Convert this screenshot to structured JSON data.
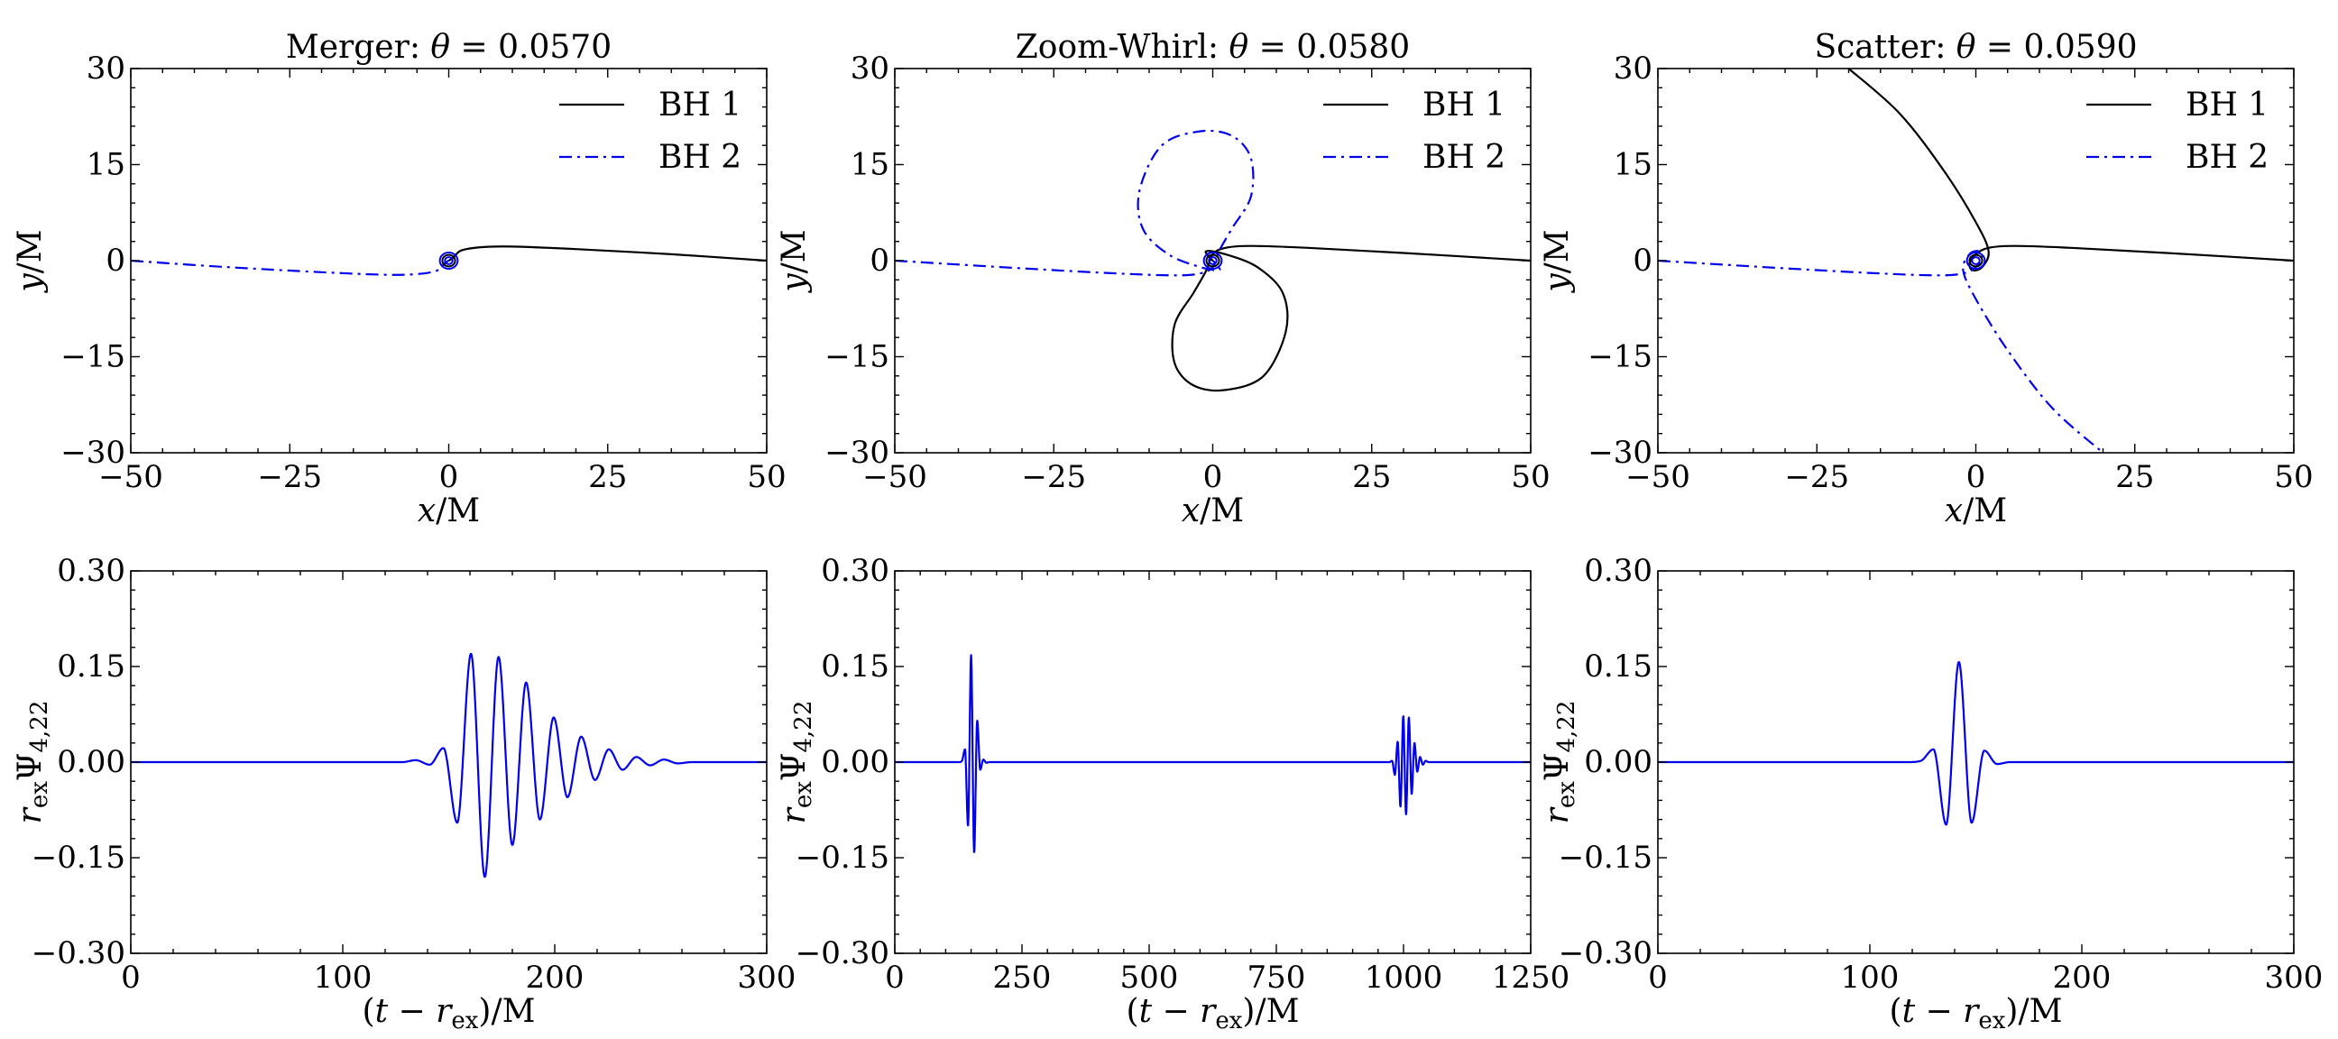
{
  "figure": {
    "colors": {
      "bh1": "#000000",
      "bh2": "#0000ee",
      "wave": "#0000ee",
      "axis": "#000000"
    }
  },
  "chart_data": [
    {
      "type": "line",
      "panel": "top-left",
      "title": "Merger: θ = 0.0570",
      "xlabel": "x/M",
      "ylabel": "y/M",
      "xlim": [
        -50,
        50
      ],
      "ylim": [
        -30,
        30
      ],
      "xticks": [
        -50,
        -25,
        0,
        25,
        50
      ],
      "yticks": [
        -30,
        -15,
        0,
        15,
        30
      ],
      "xtick_labels": [
        "−50",
        "−25",
        "0",
        "25",
        "50"
      ],
      "ytick_labels": [
        "−30",
        "−15",
        "0",
        "15",
        "30"
      ],
      "legend": {
        "position": "top-right",
        "entries": [
          "BH 1",
          "BH 2"
        ]
      },
      "series": [
        {
          "name": "BH 1",
          "style": "solid",
          "x": [
            50,
            35,
            20,
            10,
            5,
            2,
            1,
            0.5,
            0
          ],
          "y": [
            0,
            1.0,
            1.8,
            2.2,
            2.1,
            1.6,
            0.8,
            0.3,
            0
          ]
        },
        {
          "name": "BH 2",
          "style": "dashdot",
          "x": [
            -50,
            -35,
            -20,
            -10,
            -5,
            -2,
            -1,
            -0.5,
            0
          ],
          "y": [
            0,
            -1.0,
            -1.8,
            -2.2,
            -2.1,
            -1.6,
            -0.8,
            -0.3,
            0
          ]
        }
      ]
    },
    {
      "type": "line",
      "panel": "top-middle",
      "title": "Zoom-Whirl: θ = 0.0580",
      "xlabel": "x/M",
      "ylabel": "y/M",
      "xlim": [
        -50,
        50
      ],
      "ylim": [
        -30,
        30
      ],
      "xticks": [
        -50,
        -25,
        0,
        25,
        50
      ],
      "yticks": [
        -30,
        -15,
        0,
        15,
        30
      ],
      "xtick_labels": [
        "−50",
        "−25",
        "0",
        "25",
        "50"
      ],
      "ytick_labels": [
        "−30",
        "−15",
        "0",
        "15",
        "30"
      ],
      "legend": {
        "position": "top-right",
        "entries": [
          "BH 1",
          "BH 2"
        ]
      },
      "series": [
        {
          "name": "BH 1",
          "style": "solid",
          "x": [
            50,
            30,
            15,
            6,
            2,
            0,
            -1,
            -3,
            -6,
            -6,
            -3,
            2,
            8,
            11.5,
            11,
            7,
            2,
            -1,
            -0.5,
            0
          ],
          "y": [
            0,
            1.2,
            2.0,
            2.3,
            2.0,
            1.0,
            -1.5,
            -5,
            -10,
            -16,
            -19.5,
            -20.2,
            -18,
            -11,
            -5,
            -1,
            1,
            1.5,
            0.5,
            0
          ]
        },
        {
          "name": "BH 2",
          "style": "dashdot",
          "x": [
            -50,
            -30,
            -15,
            -6,
            -2,
            0,
            1,
            3,
            6,
            6,
            3,
            -2,
            -8,
            -11.5,
            -11,
            -7,
            -2,
            1,
            0.5,
            0
          ],
          "y": [
            0,
            -1.2,
            -2.0,
            -2.3,
            -2.0,
            -1.0,
            1.5,
            5,
            10,
            16,
            19.5,
            20.2,
            18,
            11,
            5,
            1,
            -1,
            -1.5,
            -0.5,
            0
          ]
        }
      ]
    },
    {
      "type": "line",
      "panel": "top-right",
      "title": "Scatter: θ = 0.0590",
      "xlabel": "x/M",
      "ylabel": "y/M",
      "xlim": [
        -50,
        50
      ],
      "ylim": [
        -30,
        30
      ],
      "xticks": [
        -50,
        -25,
        0,
        25,
        50
      ],
      "yticks": [
        -30,
        -15,
        0,
        15,
        30
      ],
      "xtick_labels": [
        "−50",
        "−25",
        "0",
        "25",
        "50"
      ],
      "ytick_labels": [
        "−30",
        "−15",
        "0",
        "15",
        "30"
      ],
      "legend": {
        "position": "top-right",
        "entries": [
          "BH 1",
          "BH 2"
        ]
      },
      "series": [
        {
          "name": "BH 1",
          "style": "solid",
          "x": [
            50,
            30,
            15,
            6,
            2,
            0,
            -1,
            -0.5,
            1,
            2,
            0,
            -5,
            -12,
            -20
          ],
          "y": [
            0,
            1.2,
            2.0,
            2.3,
            2.0,
            1.0,
            -0.5,
            -1.5,
            -1.0,
            1.5,
            6,
            14,
            23,
            30
          ]
        },
        {
          "name": "BH 2",
          "style": "dashdot",
          "x": [
            -50,
            -30,
            -15,
            -6,
            -2,
            0,
            1,
            0.5,
            -1,
            -2,
            0,
            5,
            12,
            20
          ],
          "y": [
            0,
            -1.2,
            -2.0,
            -2.3,
            -2.0,
            -1.0,
            0.5,
            1.5,
            1.0,
            -1.5,
            -6,
            -14,
            -23,
            -30
          ]
        }
      ]
    },
    {
      "type": "line",
      "panel": "bottom-left",
      "xlabel": "(t − r_ex)/M",
      "ylabel": "r_ex Ψ_4,22",
      "xlim": [
        0,
        300
      ],
      "ylim": [
        -0.3,
        0.3
      ],
      "xticks": [
        0,
        100,
        200,
        300
      ],
      "yticks": [
        -0.3,
        -0.15,
        0,
        0.15,
        0.3
      ],
      "xtick_labels": [
        "0",
        "100",
        "200",
        "300"
      ],
      "ytick_labels": [
        "−0.30",
        "−0.15",
        "0.00",
        "0.15",
        "0.30"
      ],
      "wave": {
        "t_start": 128,
        "period": 13,
        "extrema": [
          0.003,
          -0.004,
          0.022,
          -0.095,
          0.17,
          -0.18,
          0.165,
          -0.13,
          0.125,
          -0.09,
          0.07,
          -0.055,
          0.04,
          -0.028,
          0.02,
          -0.012,
          0.008,
          -0.005,
          0.004,
          -0.002
        ]
      }
    },
    {
      "type": "line",
      "panel": "bottom-middle",
      "xlabel": "(t − r_ex)/M",
      "ylabel": "r_ex Ψ_4,22",
      "xlim": [
        0,
        1250
      ],
      "ylim": [
        -0.3,
        0.3
      ],
      "xticks": [
        0,
        250,
        500,
        750,
        1000,
        1250
      ],
      "yticks": [
        -0.3,
        -0.15,
        0,
        0.15,
        0.3
      ],
      "xtick_labels": [
        "0",
        "250",
        "500",
        "750",
        "1000",
        "1250"
      ],
      "ytick_labels": [
        "−0.30",
        "−0.15",
        "0.00",
        "0.15",
        "0.30"
      ],
      "wave": [
        {
          "t_start": 126,
          "period": 12,
          "extrema": [
            0.002,
            0.02,
            -0.1,
            0.168,
            -0.142,
            0.065,
            -0.012,
            0.004,
            -0.001
          ]
        },
        {
          "t_start": 972,
          "period": 11,
          "extrema": [
            0.002,
            -0.02,
            0.032,
            -0.07,
            0.072,
            -0.082,
            0.07,
            -0.05,
            0.03,
            -0.015,
            0.008,
            -0.004,
            0.002
          ]
        }
      ]
    },
    {
      "type": "line",
      "panel": "bottom-right",
      "xlabel": "(t − r_ex)/M",
      "ylabel": "r_ex Ψ_4,22",
      "xlim": [
        0,
        300
      ],
      "ylim": [
        -0.3,
        0.3
      ],
      "xticks": [
        0,
        100,
        200,
        300
      ],
      "yticks": [
        -0.3,
        -0.15,
        0,
        0.15,
        0.3
      ],
      "xtick_labels": [
        "0",
        "100",
        "200",
        "300"
      ],
      "ytick_labels": [
        "−0.30",
        "−0.15",
        "0.00",
        "0.15",
        "0.30"
      ],
      "wave": {
        "t_start": 118,
        "period": 12,
        "extrema": [
          0.002,
          0.02,
          -0.098,
          0.157,
          -0.095,
          0.018,
          -0.003
        ]
      }
    }
  ]
}
